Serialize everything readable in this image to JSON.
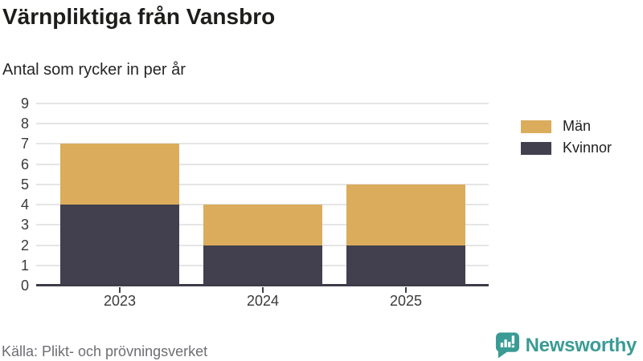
{
  "header": {
    "title": "Värnpliktiga från Vansbro",
    "subtitle": "Antal som rycker in per år"
  },
  "chart_data": {
    "type": "bar",
    "stacked": true,
    "title": "Värnpliktiga från Vansbro",
    "subtitle": "Antal som rycker in per år",
    "categories": [
      "2023",
      "2024",
      "2025"
    ],
    "series": [
      {
        "name": "Män",
        "color": "#DBAC5C",
        "values": [
          3,
          2,
          3
        ]
      },
      {
        "name": "Kvinnor",
        "color": "#423F4E",
        "values": [
          4,
          2,
          2
        ]
      }
    ],
    "stack_order_bottom_to_top": [
      "Kvinnor",
      "Män"
    ],
    "totals": [
      7,
      4,
      5
    ],
    "xlabel": "",
    "ylabel": "",
    "ylim": [
      0,
      9
    ],
    "yticks": [
      0,
      1,
      2,
      3,
      4,
      5,
      6,
      7,
      8,
      9
    ],
    "grid": true,
    "legend_position": "top-right"
  },
  "legend": {
    "items": [
      {
        "label": "Män",
        "color": "#DBAC5C"
      },
      {
        "label": "Kvinnor",
        "color": "#423F4E"
      }
    ]
  },
  "footer": {
    "source": "Källa: Plikt- och prövningsverket",
    "brand": "Newsworthy"
  },
  "colors": {
    "man": "#DBAC5C",
    "kvinnor": "#423F4E",
    "brand_teal": "#3A9B95",
    "grid": "#E5E5E5",
    "axis": "#3F3C49",
    "source_text": "#6E6E73",
    "title_text": "#1D1D1B"
  }
}
